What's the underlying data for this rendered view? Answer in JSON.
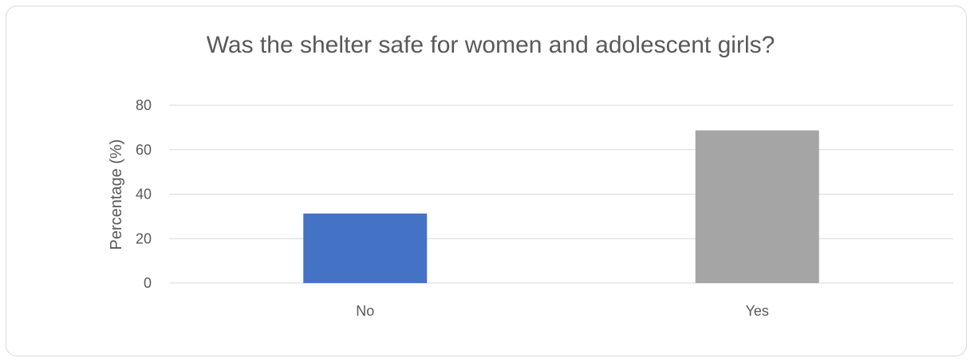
{
  "chart_data": {
    "type": "bar",
    "title": "Was the shelter safe for women and adolescent girls?",
    "xlabel": "",
    "ylabel": "Percentage (%)",
    "categories": [
      "No",
      "Yes"
    ],
    "values": [
      31.3,
      68.7
    ],
    "ylim": [
      0,
      80
    ],
    "yticks": [
      0,
      20,
      40,
      60,
      80
    ],
    "grid": true,
    "legend": "none",
    "colors": [
      "#4472C4",
      "#A5A5A5"
    ]
  }
}
